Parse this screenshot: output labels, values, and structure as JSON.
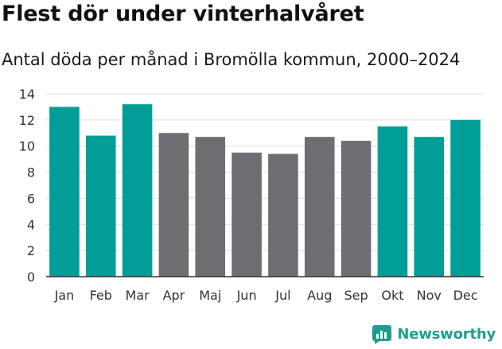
{
  "title": "Flest dör under vinterhalvåret",
  "subtitle": "Antal döda per månad i Bromölla kommun, 2000–2024",
  "brand": {
    "name": "Newsworthy"
  },
  "colors": {
    "winter": "#009e96",
    "summer": "#6e6d72",
    "grid": "#dcdcdc",
    "brand": "#1f9e90"
  },
  "chart_data": {
    "type": "bar",
    "title": "Flest dör under vinterhalvåret",
    "subtitle": "Antal döda per månad i Bromölla kommun, 2000–2024",
    "xlabel": "",
    "ylabel": "",
    "categories": [
      "Jan",
      "Feb",
      "Mar",
      "Apr",
      "Maj",
      "Jun",
      "Jul",
      "Aug",
      "Sep",
      "Okt",
      "Nov",
      "Dec"
    ],
    "values": [
      13.0,
      10.8,
      13.2,
      11.0,
      10.7,
      9.5,
      9.4,
      10.7,
      10.4,
      11.5,
      10.7,
      12.0
    ],
    "highlight": [
      true,
      true,
      true,
      false,
      false,
      false,
      false,
      false,
      false,
      true,
      true,
      true
    ],
    "ylim": [
      0,
      14
    ],
    "yticks": [
      0,
      2,
      4,
      6,
      8,
      10,
      12,
      14
    ],
    "grid": true,
    "legend": "none"
  }
}
